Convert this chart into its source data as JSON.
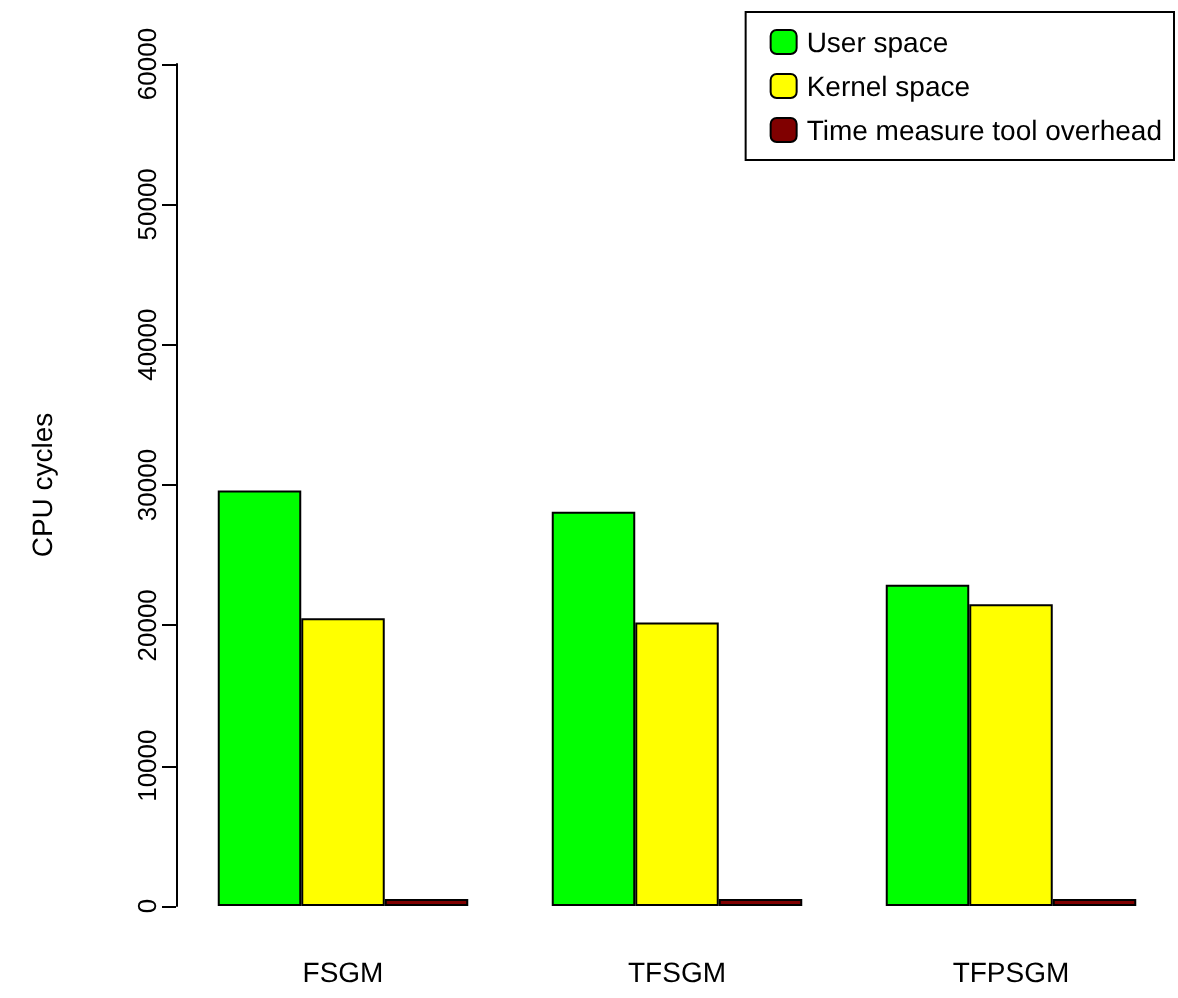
{
  "chart_data": {
    "type": "bar",
    "ylabel": "CPU cycles",
    "categories": [
      "FSGM",
      "TFSGM",
      "TFPSGM"
    ],
    "series": [
      {
        "name": "User space",
        "color": "#00ff00",
        "values": [
          29600,
          28100,
          22900
        ]
      },
      {
        "name": "Kernel space",
        "color": "#ffff00",
        "values": [
          20500,
          20200,
          21500
        ]
      },
      {
        "name": "Time measure tool overhead",
        "color": "#800000",
        "values": [
          500,
          500,
          500
        ]
      }
    ],
    "ylim": [
      0,
      60000
    ],
    "yticks": [
      0,
      10000,
      20000,
      30000,
      40000,
      50000,
      60000
    ],
    "grid": false,
    "legend": "top right"
  }
}
